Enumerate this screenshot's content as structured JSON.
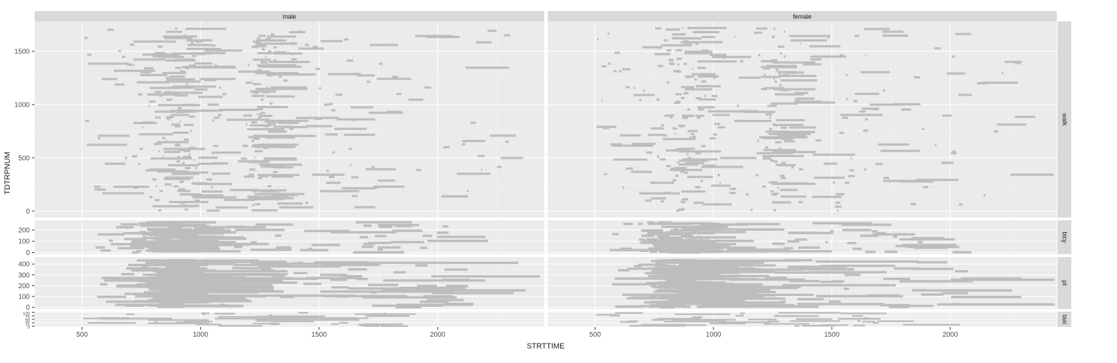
{
  "chart_data": {
    "type": "faceted-segments",
    "title": "",
    "xlabel": "STRTTIME",
    "ylabel": "TDTRPNUM",
    "xlim": [
      300,
      2450
    ],
    "x_ticks": [
      500,
      1000,
      1500,
      2000
    ],
    "x_tick_labels": [
      "500",
      "1000",
      "1500",
      "2000"
    ],
    "columns": [
      "male",
      "female"
    ],
    "rows": [
      {
        "name": "walk",
        "ylim": [
          -60,
          1780
        ],
        "y_ticks": [
          0,
          500,
          1000,
          1500
        ],
        "y_tick_labels": [
          "0",
          "500",
          "1000",
          "1500"
        ],
        "n_segments": 430
      },
      {
        "name": "bicy",
        "ylim": [
          -15,
          285
        ],
        "y_ticks": [
          0,
          100,
          200
        ],
        "y_tick_labels": [
          "0",
          "100",
          "200"
        ],
        "n_segments": 170
      },
      {
        "name": "pt",
        "ylim": [
          -15,
          465
        ],
        "y_ticks": [
          0,
          100,
          200,
          300,
          400
        ],
        "y_tick_labels": [
          "0",
          "100",
          "200",
          "300",
          "400"
        ],
        "n_segments": 210
      },
      {
        "name": "taxi",
        "ylim": [
          -5,
          105
        ],
        "y_ticks": [
          0,
          25,
          50,
          75,
          100
        ],
        "y_tick_labels": [
          "0",
          "25",
          "50",
          "75",
          "100"
        ],
        "n_segments": 50
      }
    ],
    "segment_color": "#bdbdbd",
    "panel_background": "#ebebeb",
    "strip_background": "#d9d9d9",
    "grid": true,
    "legend": "none",
    "note": "each horizontal segment = one trip from STRTTIME to end time at row TDTRPNUM; segments cluster around 600–1000 and 1150–1350 for walk, 600–1000 for bicy and pt"
  }
}
